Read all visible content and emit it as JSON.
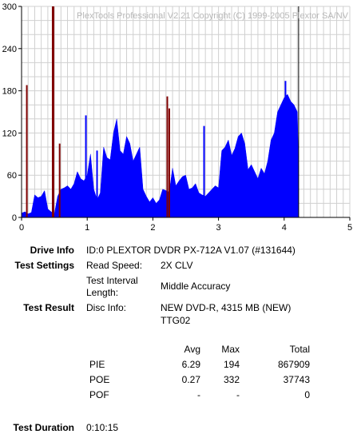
{
  "chart_data": {
    "type": "area",
    "watermark": "PlexTools Professional V2.21 Copyright (C) 1999-2005 Plextor SA/NV",
    "xlim": [
      0,
      5
    ],
    "ylim": [
      0,
      300
    ],
    "x_ticks": [
      "0",
      "1",
      "2",
      "3",
      "4",
      "5"
    ],
    "y_ticks": [
      "0",
      "60",
      "120",
      "180",
      "240",
      "300"
    ],
    "grid": true,
    "series": [
      {
        "color": "#0000ff",
        "x": [
          0.0,
          0.05,
          0.1,
          0.15,
          0.2,
          0.25,
          0.3,
          0.35,
          0.4,
          0.45,
          0.5,
          0.55,
          0.6,
          0.65,
          0.7,
          0.75,
          0.8,
          0.85,
          0.9,
          0.95,
          1.0,
          1.05,
          1.1,
          1.15,
          1.2,
          1.25,
          1.3,
          1.35,
          1.4,
          1.45,
          1.5,
          1.55,
          1.6,
          1.65,
          1.7,
          1.75,
          1.8,
          1.85,
          1.9,
          1.95,
          2.0,
          2.05,
          2.1,
          2.15,
          2.2,
          2.25,
          2.3,
          2.35,
          2.4,
          2.45,
          2.5,
          2.55,
          2.6,
          2.65,
          2.7,
          2.75,
          2.8,
          2.85,
          2.9,
          2.95,
          3.0,
          3.05,
          3.1,
          3.15,
          3.2,
          3.25,
          3.3,
          3.35,
          3.4,
          3.45,
          3.5,
          3.55,
          3.6,
          3.65,
          3.7,
          3.75,
          3.8,
          3.85,
          3.9,
          3.95,
          4.0,
          4.05,
          4.1,
          4.15,
          4.2,
          4.22
        ],
        "y": [
          6,
          8,
          5,
          7,
          32,
          28,
          30,
          38,
          12,
          8,
          5,
          30,
          40,
          42,
          45,
          40,
          48,
          65,
          55,
          52,
          60,
          90,
          40,
          25,
          35,
          100,
          85,
          82,
          120,
          140,
          95,
          90,
          115,
          105,
          80,
          90,
          100,
          40,
          30,
          22,
          28,
          20,
          25,
          40,
          38,
          36,
          70,
          45,
          52,
          58,
          60,
          40,
          42,
          48,
          35,
          32,
          30,
          35,
          40,
          45,
          42,
          95,
          100,
          110,
          88,
          98,
          115,
          120,
          105,
          68,
          75,
          65,
          55,
          70,
          62,
          80,
          110,
          120,
          150,
          160,
          170,
          175,
          165,
          160,
          150,
          70
        ],
        "spikes": [
          {
            "x": 0.98,
            "y": 145
          },
          {
            "x": 1.15,
            "y": 95
          },
          {
            "x": 2.78,
            "y": 130
          },
          {
            "x": 4.02,
            "y": 194
          }
        ]
      },
      {
        "color": "#800000",
        "spikes": [
          {
            "x": 0.08,
            "y": 188
          },
          {
            "x": 0.48,
            "y": 300
          },
          {
            "x": 0.58,
            "y": 105
          },
          {
            "x": 2.22,
            "y": 172
          },
          {
            "x": 2.25,
            "y": 155
          }
        ]
      }
    ],
    "end_marker_x": 4.22
  },
  "drive_info": {
    "label": "Drive Info",
    "value": "ID:0 PLEXTOR DVDR PX-712A V1.07 (#131644)"
  },
  "test_settings": {
    "label": "Test Settings",
    "read_speed_label": "Read Speed:",
    "read_speed_value": "2X CLV",
    "interval_label_1": "Test Interval",
    "interval_label_2": "Length:",
    "interval_value": "Middle Accuracy"
  },
  "test_result": {
    "label": "Test Result",
    "disc_info_label": "Disc Info:",
    "disc_info_line1": "NEW DVD-R, 4315 MB (NEW)",
    "disc_info_line2": "TTG02"
  },
  "results_table": {
    "headers": [
      "Avg",
      "Max",
      "Total"
    ],
    "rows": [
      {
        "name": "PIE",
        "avg": "6.29",
        "max": "194",
        "total": "867909"
      },
      {
        "name": "POE",
        "avg": "0.27",
        "max": "332",
        "total": "37743"
      },
      {
        "name": "POF",
        "avg": "-",
        "max": "-",
        "total": "0"
      }
    ]
  },
  "test_duration": {
    "label": "Test Duration",
    "value": "0:10:15"
  }
}
